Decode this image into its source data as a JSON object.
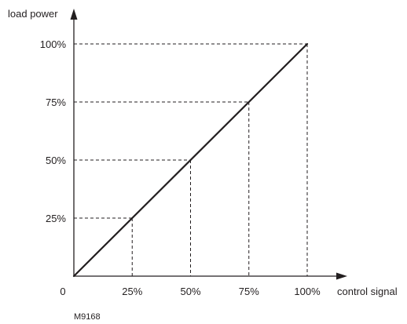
{
  "chart_data": {
    "type": "line",
    "title": "",
    "ylabel": "load power",
    "xlabel": "control signal",
    "xlim": [
      0,
      100
    ],
    "ylim": [
      0,
      100
    ],
    "origin_label": "0",
    "x_ticks": [
      {
        "value": 25,
        "label": "25%"
      },
      {
        "value": 50,
        "label": "50%"
      },
      {
        "value": 75,
        "label": "75%"
      },
      {
        "value": 100,
        "label": "100%"
      }
    ],
    "y_ticks": [
      {
        "value": 25,
        "label": "25%"
      },
      {
        "value": 50,
        "label": "50%"
      },
      {
        "value": 75,
        "label": "75%"
      },
      {
        "value": 100,
        "label": "100%"
      }
    ],
    "series": [
      {
        "x": [
          0,
          100
        ],
        "y": [
          0,
          100
        ]
      }
    ],
    "guides": [
      {
        "x": 25,
        "y": 25
      },
      {
        "x": 50,
        "y": 50
      },
      {
        "x": 75,
        "y": 75
      },
      {
        "x": 100,
        "y": 100
      }
    ],
    "grid": false,
    "legend": "none",
    "line_color": "#231f20"
  },
  "figure_code": "M9168"
}
